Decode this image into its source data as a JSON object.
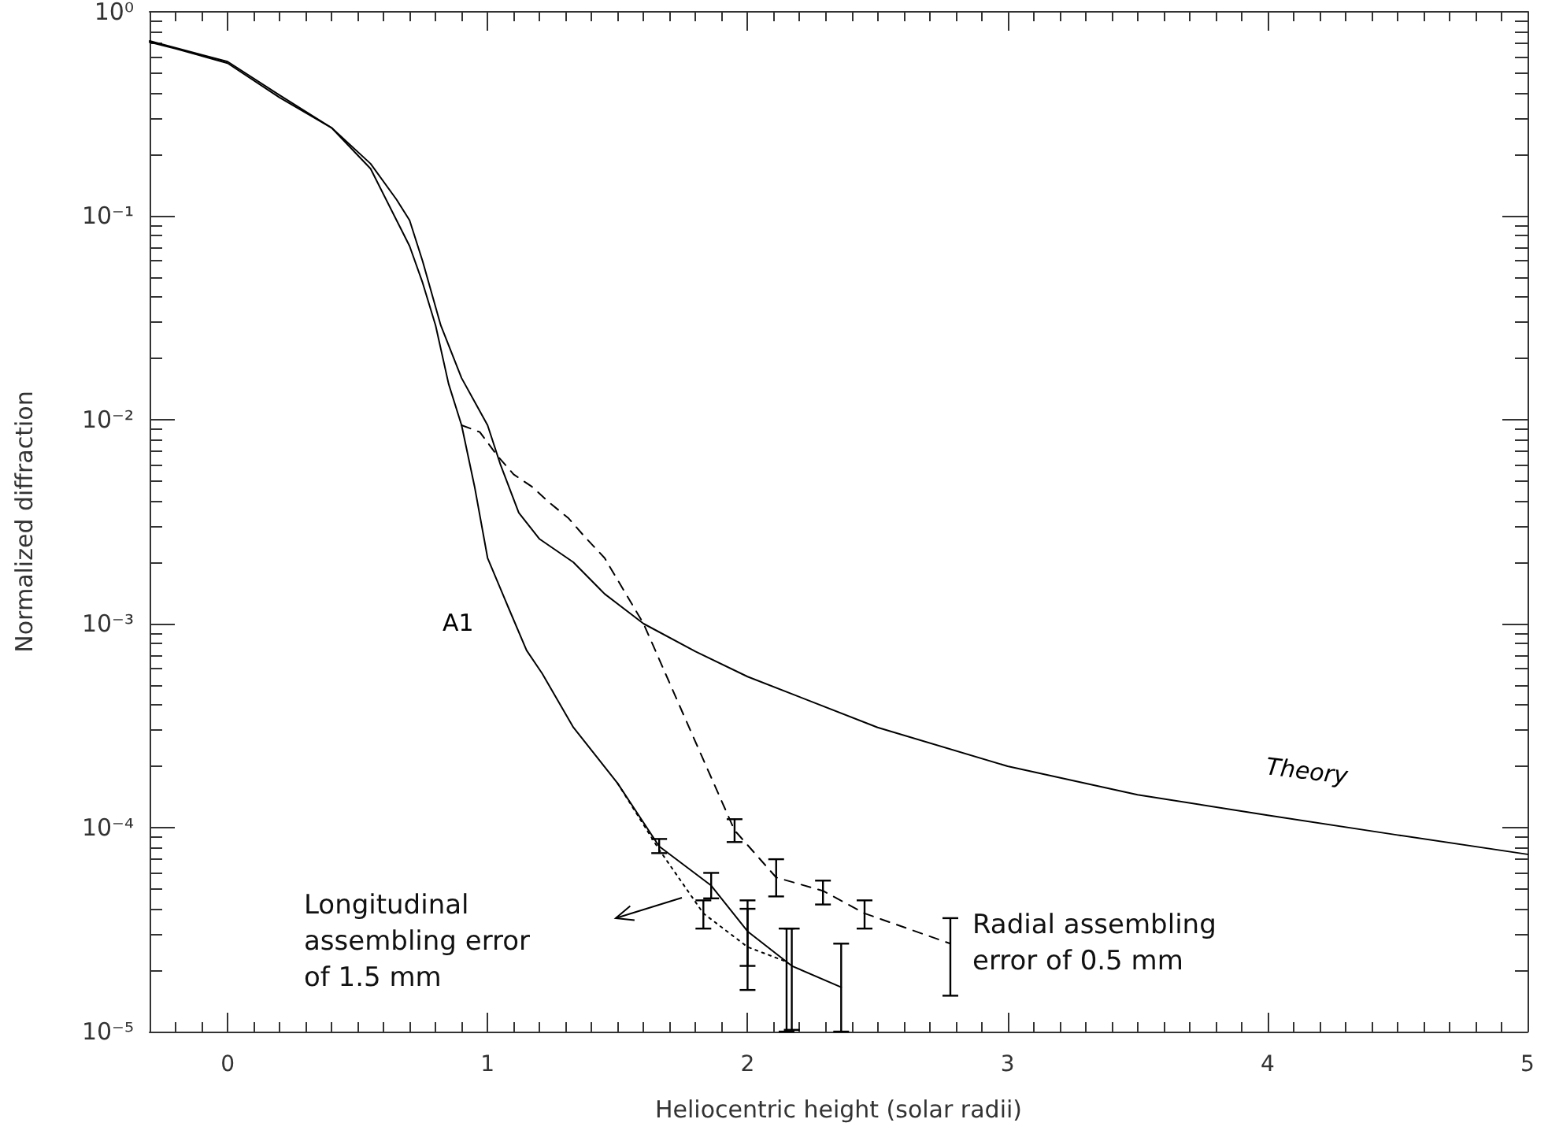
{
  "chart_data": {
    "type": "line",
    "xlabel": "Heliocentric height (solar radii)",
    "ylabel": "Normalized diffraction",
    "xlim": [
      -0.3,
      5
    ],
    "xticks": [
      0,
      1,
      2,
      3,
      4,
      5
    ],
    "ylim": [
      1e-05,
      1
    ],
    "log": "y",
    "yticks": [
      {
        "value": 1e-05,
        "label": "10⁻⁵"
      },
      {
        "value": 0.0001,
        "label": "10⁻⁴"
      },
      {
        "value": 0.001,
        "label": "10⁻³"
      },
      {
        "value": 0.01,
        "label": "10⁻²"
      },
      {
        "value": 0.1,
        "label": "10⁻¹"
      },
      {
        "value": 1,
        "label": "10⁰"
      }
    ],
    "grid": false,
    "legend": false,
    "marker": "none",
    "series": [
      {
        "name": "Theory",
        "color": "#000000",
        "line_style": "solid",
        "x": [
          -0.3,
          0,
          0.2,
          0.4,
          0.55,
          0.65,
          0.7,
          0.75,
          0.82,
          0.9,
          1.0,
          1.05,
          1.12,
          1.2,
          1.33,
          1.45,
          1.6,
          1.8,
          2.0,
          2.5,
          3.0,
          3.5,
          4.0,
          4.5,
          5.0
        ],
        "values": [
          0.72,
          0.57,
          0.39,
          0.27,
          0.18,
          0.12,
          0.095,
          0.06,
          0.029,
          0.016,
          0.0094,
          0.006,
          0.0035,
          0.0026,
          0.002,
          0.0014,
          0.001,
          0.00073,
          0.00055,
          0.00031,
          0.0002,
          0.000145,
          0.000115,
          9.2e-05,
          7.4e-05
        ]
      },
      {
        "name": "A1",
        "color": "#000000",
        "line_style": "solid",
        "x": [
          -0.3,
          -0.2,
          0,
          0.2,
          0.4,
          0.55,
          0.65,
          0.7,
          0.75,
          0.8,
          0.85,
          0.9,
          0.95,
          1.0,
          1.08,
          1.15,
          1.21,
          1.27,
          1.33,
          1.5,
          1.66,
          1.86,
          2.0,
          2.17,
          2.36
        ],
        "values": [
          0.71,
          0.66,
          0.56,
          0.38,
          0.27,
          0.17,
          0.095,
          0.071,
          0.047,
          0.029,
          0.015,
          0.0094,
          0.0047,
          0.0021,
          0.0012,
          0.00074,
          0.00057,
          0.00042,
          0.00031,
          0.000165,
          8.1e-05,
          5.2e-05,
          3.1e-05,
          2.1e-05,
          1.65e-05
        ],
        "errors": [
          null,
          null,
          null,
          null,
          null,
          null,
          null,
          null,
          null,
          null,
          null,
          null,
          null,
          null,
          null,
          null,
          null,
          null,
          null,
          null,
          [
            7.5e-05,
            8.8e-05
          ],
          [
            4.5e-05,
            6e-05
          ],
          [
            1.6e-05,
            4.4e-05
          ],
          [
            1.02e-05,
            3.2e-05
          ],
          [
            1e-05,
            2.7e-05
          ]
        ]
      },
      {
        "color": "#000000",
        "line_style": "dashed",
        "x": [
          0.9,
          0.97,
          1.04,
          1.1,
          1.17,
          1.24,
          1.31,
          1.37,
          1.45,
          1.6,
          1.78,
          1.95,
          2.11,
          2.29,
          2.45,
          2.78
        ],
        "values": [
          0.0094,
          0.0087,
          0.0066,
          0.0054,
          0.0047,
          0.0039,
          0.0033,
          0.0027,
          0.0021,
          0.001,
          0.0003,
          9.7e-05,
          5.7e-05,
          4.9e-05,
          3.8e-05,
          2.7e-05
        ],
        "errors": [
          null,
          null,
          null,
          null,
          null,
          null,
          null,
          null,
          null,
          null,
          null,
          [
            8.5e-05,
            0.00011
          ],
          [
            4.6e-05,
            7e-05
          ],
          [
            4.2e-05,
            5.5e-05
          ],
          [
            3.2e-05,
            4.4e-05
          ],
          [
            1.5e-05,
            3.6e-05
          ]
        ]
      },
      {
        "color": "#000000",
        "line_style": "dotted",
        "x": [
          1.5,
          1.66,
          1.83,
          2.0,
          2.15
        ],
        "values": [
          0.000165,
          7.8e-05,
          3.8e-05,
          2.6e-05,
          2.2e-05
        ],
        "errors": [
          null,
          null,
          [
            3.2e-05,
            4.4e-05
          ],
          [
            2.1e-05,
            4e-05
          ],
          [
            1e-05,
            3.2e-05
          ]
        ]
      }
    ],
    "annotations": [
      "Longitudinal\nassembling error\nof 1.5 mm",
      {
        "text": "Radial assembling\nerror of 0.5 mm",
        "x": 2.78,
        "y": 2.7e-05
      }
    ]
  }
}
